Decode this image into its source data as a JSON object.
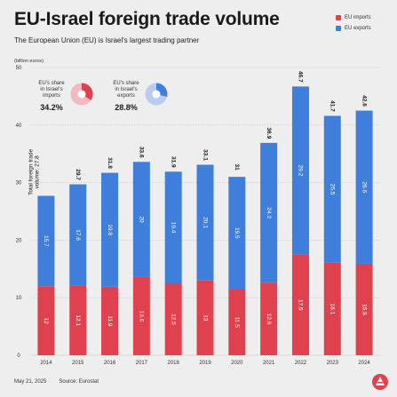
{
  "title": "EU-Israel foreign trade volume",
  "subtitle": "The European Union (EU) is Israel's largest trading partner",
  "legend": {
    "imports": "EU imports",
    "exports": "EU exports"
  },
  "unit": "(billion euros)",
  "footer": {
    "date": "May 21, 2025",
    "source": "Source: Eurostat"
  },
  "donuts": {
    "imports": {
      "label_lines": [
        "EU's share",
        "in Israel's",
        "imports"
      ],
      "value_text": "34.2%",
      "share": 0.342
    },
    "exports": {
      "label_lines": [
        "EU's share",
        "in Israel's",
        "exports"
      ],
      "value_text": "28.8%",
      "share": 0.288
    }
  },
  "first_bar_annotation": {
    "lines": [
      "Total foreign trade",
      "volume: 27.8"
    ]
  },
  "colors": {
    "imports": "#e0414f",
    "exports": "#3f7fdb",
    "imports_light": "#f2b9bf",
    "exports_light": "#b9cdef",
    "grid": "#c8c8c8"
  },
  "chart_data": {
    "type": "bar",
    "stacked": true,
    "categories": [
      "2014",
      "2015",
      "2016",
      "2017",
      "2018",
      "2019",
      "2020",
      "2021",
      "2022",
      "2023",
      "2024"
    ],
    "series": [
      {
        "name": "EU imports",
        "values": [
          12,
          12.1,
          11.9,
          13.6,
          12.5,
          13,
          11.5,
          12.6,
          17.5,
          16.1,
          15.9
        ]
      },
      {
        "name": "EU exports",
        "values": [
          15.7,
          17.6,
          19.8,
          20,
          19.4,
          20.1,
          19.5,
          24.3,
          29.2,
          25.5,
          26.6
        ]
      }
    ],
    "totals": [
      "",
      "29.7",
      "31.8",
      "33.6",
      "31.9",
      "33.1",
      "31",
      "36.9",
      "46.7",
      "41.7",
      "42.6"
    ],
    "yticks": [
      0,
      10,
      20,
      30,
      40,
      50
    ],
    "ylim": [
      0,
      50
    ],
    "grid": true,
    "legend_position": "top-right"
  }
}
